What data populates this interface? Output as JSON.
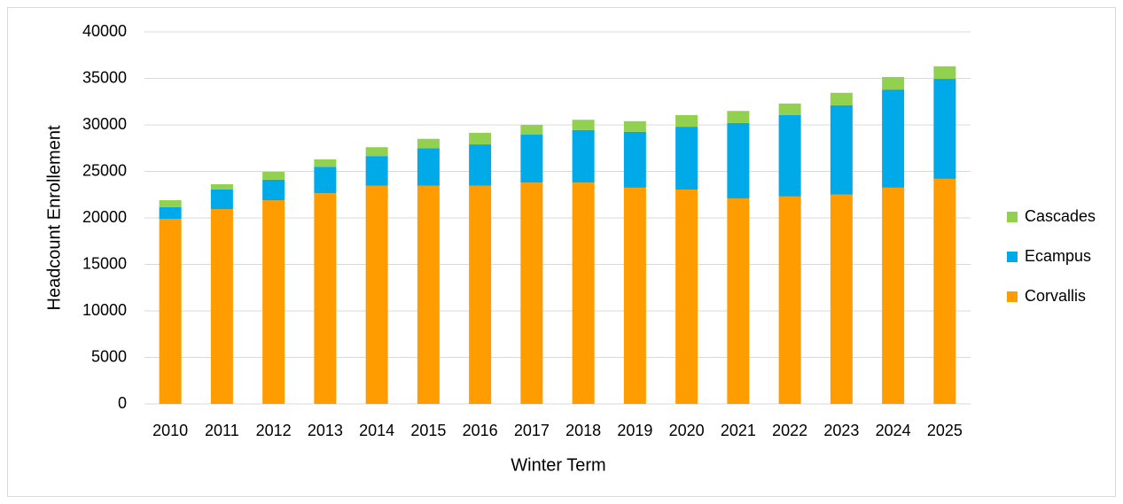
{
  "chart_data": {
    "type": "stacked_bar",
    "x_label": "Winter Term",
    "y_label": "Headcount Enrollement",
    "categories": [
      "2010",
      "2011",
      "2012",
      "2013",
      "2014",
      "2015",
      "2016",
      "2017",
      "2018",
      "2019",
      "2020",
      "2021",
      "2022",
      "2023",
      "2024",
      "2025"
    ],
    "series": [
      {
        "name": "Corvallis",
        "color": "#ff9c00",
        "values": [
          19900,
          20950,
          21900,
          22650,
          23450,
          23450,
          23450,
          23800,
          23800,
          23250,
          23050,
          22100,
          22300,
          22500,
          23250,
          24200
        ]
      },
      {
        "name": "Ecampus",
        "color": "#00a9e8",
        "values": [
          1250,
          2100,
          2200,
          2850,
          3200,
          4050,
          4450,
          5150,
          5650,
          6000,
          6750,
          8100,
          8750,
          9600,
          10550,
          10750
        ]
      },
      {
        "name": "Cascades",
        "color": "#92d050",
        "values": [
          750,
          570,
          850,
          800,
          950,
          1000,
          1250,
          1050,
          1100,
          1150,
          1250,
          1300,
          1250,
          1350,
          1350,
          1350
        ]
      }
    ],
    "ylim": [
      0,
      40000
    ],
    "yticks": [
      0,
      5000,
      10000,
      15000,
      20000,
      25000,
      30000,
      35000,
      40000
    ],
    "grid": true,
    "legend": "right"
  }
}
